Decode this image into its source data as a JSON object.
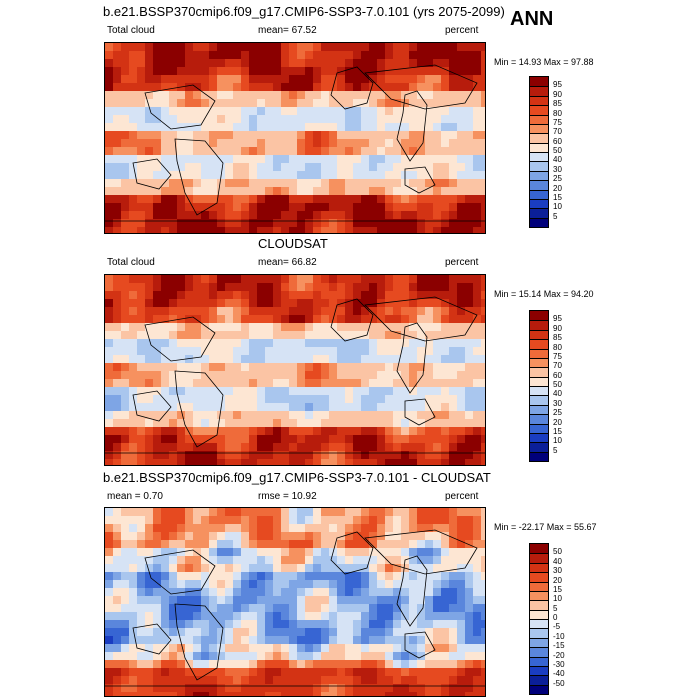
{
  "season": "ANN",
  "panels": [
    {
      "header": "b.e21.BSSP370cmip6.f09_g17.CMIP6-SSP3-7.0.101 (yrs 2075-2099)",
      "left": "Total cloud",
      "center": "mean=  67.52",
      "right": "percent",
      "minmax": "Min =  14.93 Max =  97.88",
      "levels": [
        "95",
        "90",
        "85",
        "80",
        "75",
        "70",
        "60",
        "50",
        "40",
        "30",
        "25",
        "20",
        "15",
        "10",
        "5"
      ],
      "colors": [
        "#8b0000",
        "#b71c0c",
        "#d33314",
        "#e64a20",
        "#ef6b3a",
        "#f6915f",
        "#fbc4a4",
        "#fde6d3",
        "#d6e3f5",
        "#a9c6ee",
        "#7ea5e5",
        "#5a86dc",
        "#3765d3",
        "#1a3dc1",
        "#0b1f98",
        "#00007a"
      ],
      "bias": "warm"
    },
    {
      "header": "CLOUDSAT",
      "left": "Total cloud",
      "center": "mean=  66.82",
      "right": "percent",
      "minmax": "Min =  15.14 Max =  94.20",
      "levels": [
        "95",
        "90",
        "85",
        "80",
        "75",
        "70",
        "60",
        "50",
        "40",
        "30",
        "25",
        "20",
        "15",
        "10",
        "5"
      ],
      "colors": [
        "#8b0000",
        "#b71c0c",
        "#d33314",
        "#e64a20",
        "#ef6b3a",
        "#f6915f",
        "#fbc4a4",
        "#fde6d3",
        "#d6e3f5",
        "#a9c6ee",
        "#7ea5e5",
        "#5a86dc",
        "#3765d3",
        "#1a3dc1",
        "#0b1f98",
        "#00007a"
      ],
      "bias": "mixed"
    },
    {
      "header": "b.e21.BSSP370cmip6.f09_g17.CMIP6-SSP3-7.0.101 - CLOUDSAT",
      "left": "mean =   0.70",
      "center": "rmse =  10.92",
      "right": "percent",
      "minmax": "Min = -22.17 Max =  55.67",
      "levels": [
        "50",
        "40",
        "30",
        "20",
        "15",
        "10",
        "5",
        "0",
        "-5",
        "-10",
        "-15",
        "-20",
        "-30",
        "-40",
        "-50"
      ],
      "colors": [
        "#8b0000",
        "#b71c0c",
        "#d33314",
        "#e64a20",
        "#ef6b3a",
        "#f6915f",
        "#fbc4a4",
        "#fde6d3",
        "#d6e3f5",
        "#a9c6ee",
        "#7ea5e5",
        "#5a86dc",
        "#3765d3",
        "#1a3dc1",
        "#0b1f98",
        "#00007a"
      ],
      "bias": "diff"
    }
  ]
}
